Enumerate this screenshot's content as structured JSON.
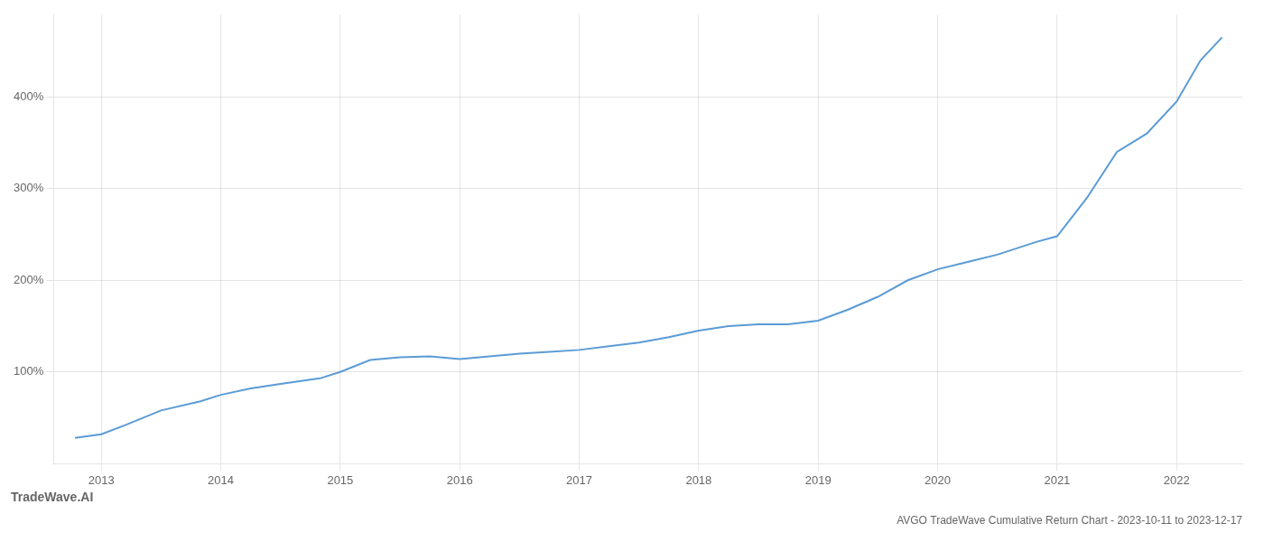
{
  "chart_data": {
    "type": "line",
    "title": "AVGO TradeWave Cumulative Return Chart - 2023-10-11 to 2023-12-17",
    "annotations": [
      "TradeWave.AI"
    ],
    "x": [
      2012.78,
      2013.0,
      2013.2,
      2013.5,
      2013.83,
      2014.0,
      2014.25,
      2014.5,
      2014.83,
      2015.0,
      2015.25,
      2015.5,
      2015.75,
      2016.0,
      2016.25,
      2016.5,
      2016.75,
      2017.0,
      2017.25,
      2017.5,
      2017.75,
      2018.0,
      2018.25,
      2018.5,
      2018.75,
      2019.0,
      2019.25,
      2019.5,
      2019.75,
      2020.0,
      2020.25,
      2020.5,
      2020.83,
      2021.0,
      2021.25,
      2021.5,
      2021.75,
      2022.0,
      2022.2,
      2022.38
    ],
    "values": [
      28,
      32,
      42,
      58,
      68,
      75,
      82,
      87,
      93,
      100,
      113,
      116,
      117,
      114,
      117,
      120,
      122,
      124,
      128,
      132,
      138,
      145,
      150,
      152,
      152,
      156,
      168,
      182,
      200,
      212,
      220,
      228,
      242,
      248,
      290,
      340,
      360,
      395,
      440,
      465
    ],
    "color": "#5b9bd5",
    "xlim": [
      2012.6,
      2022.55
    ],
    "xticks": [
      2013,
      2014,
      2015,
      2016,
      2017,
      2018,
      2019,
      2020,
      2021,
      2022
    ],
    "ylim": [
      0,
      490
    ],
    "yticks": [
      {
        "value": 100,
        "label": "100%"
      },
      {
        "value": 200,
        "label": "200%"
      },
      {
        "value": 300,
        "label": "300%"
      },
      {
        "value": 400,
        "label": "400%"
      }
    ],
    "grid": true
  }
}
